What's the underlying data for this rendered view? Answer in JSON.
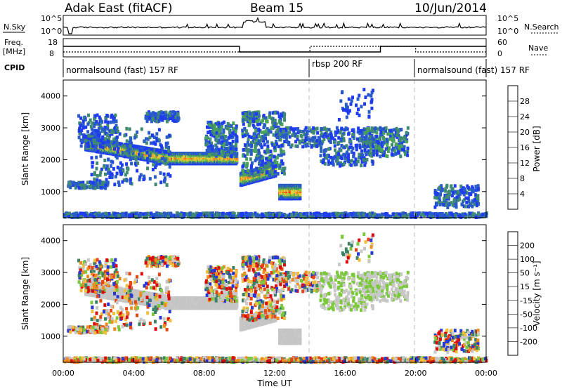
{
  "header": {
    "title": "Adak East (fitACF)",
    "beam": "Beam 15",
    "date": "10/Jun/2014"
  },
  "panels": {
    "noise": {
      "left_label": "N.Sky",
      "right_label": "N.Search",
      "left_ticks": [
        "10^5",
        "10^0"
      ],
      "right_ticks": [
        "10^5",
        "10^0"
      ]
    },
    "freq": {
      "left_label_1": "Freq.",
      "left_label_2": "[MHz]",
      "right_label": "Nave",
      "left_ticks": [
        "18",
        "8"
      ],
      "right_ticks": [
        "60",
        "0"
      ]
    },
    "cpid": {
      "label": "CPID",
      "segments": [
        {
          "text": "normalsound (fast) 157 RF",
          "start_hour": 0,
          "end_hour": 14
        },
        {
          "text": "rbsp 200 RF",
          "start_hour": 14,
          "end_hour": 20
        },
        {
          "text": "normalsound (fast) 157 RF",
          "start_hour": 20,
          "end_hour": 24
        }
      ]
    }
  },
  "colors": {
    "power_scale": [
      "#1f3cf0",
      "#2a5cc8",
      "#3f8a70",
      "#4aa35a",
      "#8cc83c",
      "#e6d23c",
      "#f5a02a",
      "#f56a1e",
      "#e62814"
    ],
    "velocity_scale": [
      "#2838d2",
      "#3c8264",
      "#7cc83c",
      "#c8c8c8",
      "#c8c8c8",
      "#f0be3c",
      "#f08c1e",
      "#e64614",
      "#dc0a0a"
    ],
    "gray_band": "#c4c4c4"
  },
  "chart_data": [
    {
      "type": "heatmap",
      "title": "Power",
      "ylabel": "Slant Range [km]",
      "ylim": [
        180,
        4500
      ],
      "yticks": [
        "1000",
        "2000",
        "3000",
        "4000"
      ],
      "xlim_hours": [
        0,
        24
      ],
      "colorbar_label": "Power [dB]",
      "colorbar_ticks": [
        "4",
        "8",
        "12",
        "16",
        "20",
        "24",
        "28"
      ],
      "echo_bands": [
        {
          "x0": 1.2,
          "x1": 6.0,
          "y_start": 2500,
          "y_end": 2050,
          "width": 180
        },
        {
          "x0": 6.0,
          "x1": 9.8,
          "y_start": 2050,
          "y_end": 2050,
          "width": 170
        },
        {
          "x0": 10.0,
          "x1": 12.0,
          "y_start": 1400,
          "y_end": 1700,
          "width": 200
        },
        {
          "x0": 12.2,
          "x1": 13.4,
          "y_start": 1000,
          "y_end": 1000,
          "width": 220
        }
      ]
    },
    {
      "type": "heatmap",
      "title": "Velocity",
      "ylabel": "Slant Range [km]",
      "ylim": [
        180,
        4500
      ],
      "yticks": [
        "1000",
        "2000",
        "3000",
        "4000"
      ],
      "xlim_hours": [
        0,
        24
      ],
      "xticks": [
        "00:00",
        "04:00",
        "08:00",
        "12:00",
        "16:00",
        "20:00",
        "00:00"
      ],
      "xlabel": "Time UT",
      "colorbar_label": "Velocity [m s⁻¹]",
      "colorbar_ticks": [
        "200",
        "100",
        "50",
        "15",
        "-15",
        "-50",
        "-100",
        "-200"
      ]
    }
  ]
}
